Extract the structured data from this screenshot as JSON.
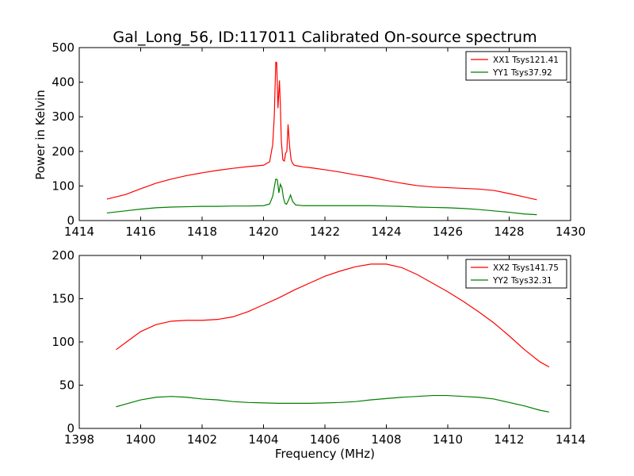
{
  "figure": {
    "title": "Gal_Long_56, ID:117011 Calibrated On-source spectrum",
    "ylabel": "Power in Kelvin",
    "xlabel": "Frequency (MHz)"
  },
  "chart_data": [
    {
      "type": "line",
      "xlim": [
        1414,
        1430
      ],
      "ylim": [
        0,
        500
      ],
      "xticks": [
        1414,
        1416,
        1418,
        1420,
        1422,
        1424,
        1426,
        1428,
        1430
      ],
      "yticks": [
        0,
        100,
        200,
        300,
        400,
        500
      ],
      "legend_position": "top-right",
      "series": [
        {
          "name": "XX1 Tsys121.41",
          "color": "#ff0000",
          "x": [
            1414.9,
            1415.5,
            1416.0,
            1416.5,
            1417.0,
            1417.5,
            1418.0,
            1418.5,
            1419.0,
            1419.5,
            1420.0,
            1420.2,
            1420.3,
            1420.35,
            1420.4,
            1420.43,
            1420.47,
            1420.52,
            1420.55,
            1420.58,
            1420.63,
            1420.68,
            1420.72,
            1420.76,
            1420.8,
            1420.85,
            1420.9,
            1420.95,
            1421.0,
            1421.1,
            1421.3,
            1421.6,
            1422.0,
            1422.5,
            1423.0,
            1423.5,
            1424.0,
            1424.5,
            1425.0,
            1425.5,
            1426.0,
            1426.5,
            1427.0,
            1427.5,
            1428.0,
            1428.5,
            1428.9
          ],
          "y": [
            62,
            75,
            92,
            108,
            120,
            130,
            138,
            145,
            151,
            156,
            160,
            170,
            220,
            300,
            458,
            457,
            325,
            405,
            330,
            230,
            175,
            172,
            195,
            200,
            278,
            215,
            175,
            165,
            160,
            158,
            155,
            152,
            147,
            140,
            132,
            125,
            116,
            108,
            101,
            97,
            95,
            93,
            91,
            87,
            78,
            68,
            60
          ]
        },
        {
          "name": "YY1 Tsys37.92",
          "color": "#008000",
          "x": [
            1414.9,
            1415.5,
            1416.0,
            1416.5,
            1417.0,
            1417.5,
            1418.0,
            1418.5,
            1419.0,
            1419.5,
            1420.0,
            1420.2,
            1420.3,
            1420.35,
            1420.4,
            1420.45,
            1420.5,
            1420.55,
            1420.6,
            1420.65,
            1420.7,
            1420.75,
            1420.82,
            1420.88,
            1420.95,
            1421.05,
            1421.3,
            1421.6,
            1422.0,
            1422.5,
            1423.0,
            1423.5,
            1424.0,
            1424.5,
            1425.0,
            1425.5,
            1426.0,
            1426.5,
            1427.0,
            1427.5,
            1428.0,
            1428.5,
            1428.9
          ],
          "y": [
            22,
            28,
            33,
            37,
            39,
            40,
            41,
            41,
            42,
            42,
            43,
            48,
            70,
            95,
            120,
            118,
            80,
            105,
            95,
            65,
            50,
            47,
            60,
            74,
            55,
            45,
            43,
            43,
            43,
            43,
            43,
            43,
            42,
            41,
            39,
            38,
            37,
            35,
            32,
            28,
            24,
            19,
            17
          ]
        }
      ]
    },
    {
      "type": "line",
      "xlim": [
        1398,
        1414
      ],
      "ylim": [
        0,
        200
      ],
      "xticks": [
        1398,
        1400,
        1402,
        1404,
        1406,
        1408,
        1410,
        1412,
        1414
      ],
      "yticks": [
        0,
        50,
        100,
        150,
        200
      ],
      "legend_position": "top-right",
      "series": [
        {
          "name": "XX2 Tsys141.75",
          "color": "#ff0000",
          "x": [
            1399.2,
            1399.5,
            1400.0,
            1400.5,
            1401.0,
            1401.5,
            1402.0,
            1402.5,
            1403.0,
            1403.5,
            1404.0,
            1404.5,
            1405.0,
            1405.5,
            1406.0,
            1406.5,
            1407.0,
            1407.5,
            1408.0,
            1408.5,
            1409.0,
            1409.5,
            1410.0,
            1410.5,
            1411.0,
            1411.5,
            1412.0,
            1412.5,
            1413.0,
            1413.3
          ],
          "y": [
            91,
            99,
            112,
            120,
            124,
            125,
            125,
            126,
            129,
            135,
            143,
            151,
            160,
            168,
            176,
            182,
            187,
            190,
            190,
            186,
            178,
            168,
            158,
            147,
            135,
            122,
            107,
            91,
            77,
            71
          ]
        },
        {
          "name": "YY2 Tsys32.31",
          "color": "#008000",
          "x": [
            1399.2,
            1399.5,
            1400.0,
            1400.5,
            1401.0,
            1401.5,
            1402.0,
            1402.5,
            1403.0,
            1403.5,
            1404.0,
            1404.5,
            1405.0,
            1405.5,
            1406.0,
            1406.5,
            1407.0,
            1407.5,
            1408.0,
            1408.5,
            1409.0,
            1409.5,
            1410.0,
            1410.5,
            1411.0,
            1411.5,
            1412.0,
            1412.5,
            1413.0,
            1413.3
          ],
          "y": [
            25,
            28,
            33,
            36,
            37,
            36,
            34,
            33,
            31,
            30,
            29.5,
            29,
            29,
            29,
            29.5,
            30,
            31,
            33,
            34.5,
            36,
            37,
            38,
            38,
            37,
            36,
            34,
            30,
            26,
            21,
            19
          ]
        }
      ]
    }
  ]
}
